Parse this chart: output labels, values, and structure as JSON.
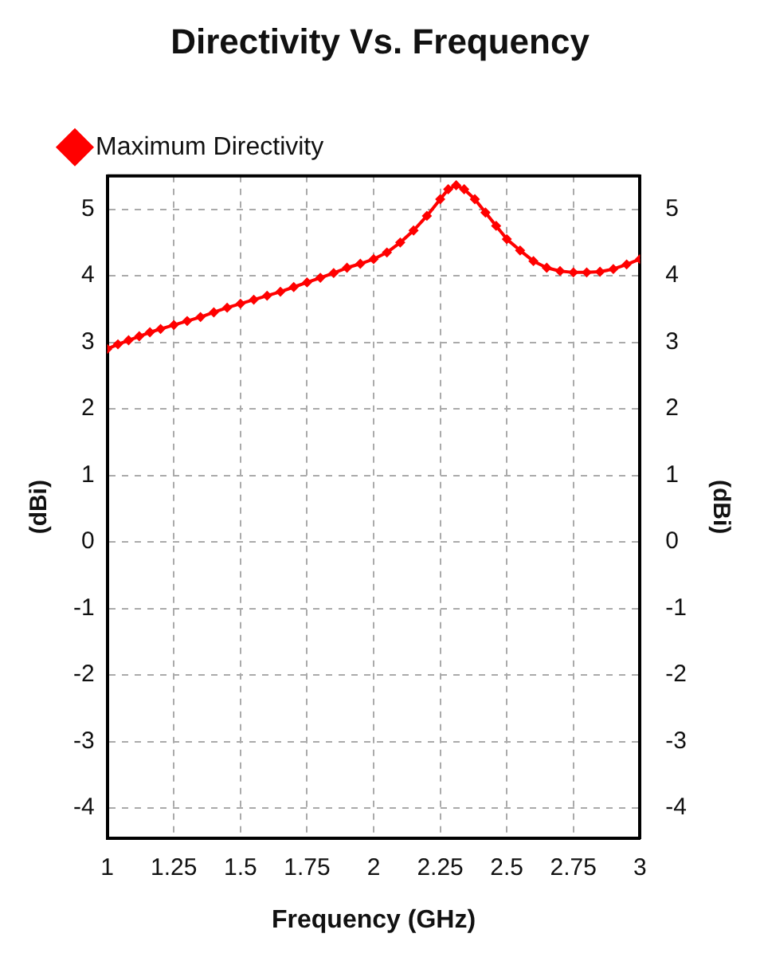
{
  "chart_data": {
    "type": "line",
    "title": "Directivity Vs. Frequency",
    "xlabel": "Frequency (GHz)",
    "ylabel": "(dBi)",
    "y2label": "(dBi)",
    "x": [
      1.0,
      1.04,
      1.08,
      1.12,
      1.16,
      1.2,
      1.25,
      1.3,
      1.35,
      1.4,
      1.45,
      1.5,
      1.55,
      1.6,
      1.65,
      1.7,
      1.75,
      1.8,
      1.85,
      1.9,
      1.95,
      2.0,
      2.05,
      2.1,
      2.15,
      2.2,
      2.25,
      2.28,
      2.31,
      2.34,
      2.38,
      2.42,
      2.46,
      2.5,
      2.55,
      2.6,
      2.65,
      2.7,
      2.75,
      2.8,
      2.85,
      2.9,
      2.95,
      3.0
    ],
    "series": [
      {
        "name": "Maximum Directivity",
        "color": "#ff0000",
        "values": [
          2.9,
          2.97,
          3.03,
          3.09,
          3.15,
          3.2,
          3.26,
          3.32,
          3.38,
          3.45,
          3.52,
          3.58,
          3.64,
          3.7,
          3.76,
          3.83,
          3.9,
          3.97,
          4.04,
          4.12,
          4.18,
          4.25,
          4.35,
          4.5,
          4.68,
          4.9,
          5.15,
          5.3,
          5.36,
          5.3,
          5.15,
          4.95,
          4.75,
          4.55,
          4.38,
          4.22,
          4.12,
          4.07,
          4.05,
          4.05,
          4.06,
          4.1,
          4.17,
          4.25
        ]
      }
    ],
    "xlim": [
      1,
      3
    ],
    "xticks": [
      1,
      1.25,
      1.5,
      1.75,
      2,
      2.25,
      2.5,
      2.75,
      3
    ],
    "ylim": [
      -4.45,
      5.5
    ],
    "yticks": [
      -4,
      -3,
      -2,
      -1,
      0,
      1,
      2,
      3,
      4,
      5
    ],
    "y2lim": [
      -4.45,
      5.5
    ],
    "y2ticks": [
      -4,
      -3,
      -2,
      -1,
      0,
      1,
      2,
      3,
      4,
      5
    ],
    "grid": true,
    "legend": "top left",
    "marker": "diamond",
    "line_style": "solid"
  }
}
